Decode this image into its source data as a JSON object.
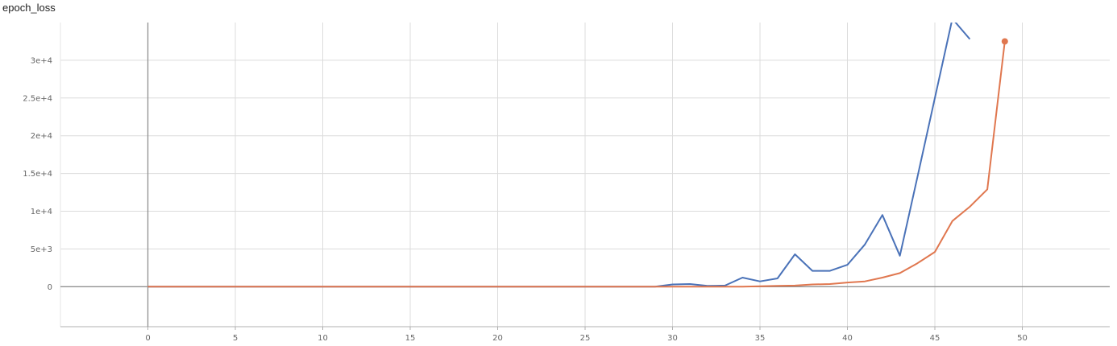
{
  "chart_data": {
    "type": "line",
    "title": "epoch_loss",
    "xlabel": "",
    "ylabel": "",
    "xlim": [
      -5,
      55
    ],
    "ylim": [
      -5300,
      35000
    ],
    "x_ticks": [
      0,
      5,
      10,
      15,
      20,
      25,
      30,
      35,
      40,
      45,
      50
    ],
    "x_tick_labels": [
      "0",
      "5",
      "10",
      "15",
      "20",
      "25",
      "30",
      "35",
      "40",
      "45",
      "50"
    ],
    "y_ticks": [
      0,
      5000,
      10000,
      15000,
      20000,
      25000,
      30000
    ],
    "y_tick_labels": [
      "0",
      "5e+3",
      "1e+4",
      "1.5e+4",
      "2e+4",
      "2.5e+4",
      "3e+4"
    ],
    "grid": true,
    "legend": "none",
    "series": [
      {
        "color": "#4a72b8",
        "x": [
          0,
          1,
          2,
          3,
          4,
          5,
          6,
          7,
          8,
          9,
          10,
          11,
          12,
          13,
          14,
          15,
          16,
          17,
          18,
          19,
          20,
          21,
          22,
          23,
          24,
          25,
          26,
          27,
          28,
          29,
          30,
          31,
          32,
          33,
          34,
          35,
          36,
          37,
          38,
          39,
          40,
          41,
          42,
          43,
          44,
          45,
          46,
          47
        ],
        "y": [
          0,
          0,
          0,
          0,
          0,
          0,
          0,
          0,
          0,
          0,
          0,
          0,
          0,
          0,
          0,
          0,
          0,
          0,
          0,
          0,
          0,
          0,
          0,
          0,
          0,
          0,
          0,
          0,
          0,
          0,
          300,
          350,
          100,
          150,
          1200,
          700,
          1100,
          4300,
          2100,
          2100,
          2900,
          5600,
          9500,
          4100,
          14500,
          25000,
          35500,
          32800
        ]
      },
      {
        "color": "#e0774f",
        "x": [
          0,
          1,
          2,
          3,
          4,
          5,
          6,
          7,
          8,
          9,
          10,
          11,
          12,
          13,
          14,
          15,
          16,
          17,
          18,
          19,
          20,
          21,
          22,
          23,
          24,
          25,
          26,
          27,
          28,
          29,
          30,
          31,
          32,
          33,
          34,
          35,
          36,
          37,
          38,
          39,
          40,
          41,
          42,
          43,
          44,
          45,
          46,
          47,
          48,
          49
        ],
        "y": [
          0,
          0,
          0,
          0,
          0,
          0,
          0,
          0,
          0,
          0,
          0,
          0,
          0,
          0,
          0,
          0,
          0,
          0,
          0,
          0,
          0,
          0,
          0,
          0,
          0,
          0,
          0,
          0,
          0,
          0,
          0,
          0,
          0,
          0,
          0,
          50,
          100,
          150,
          300,
          350,
          550,
          700,
          1200,
          1800,
          3100,
          4600,
          8700,
          10600,
          12900,
          32500
        ]
      }
    ]
  }
}
